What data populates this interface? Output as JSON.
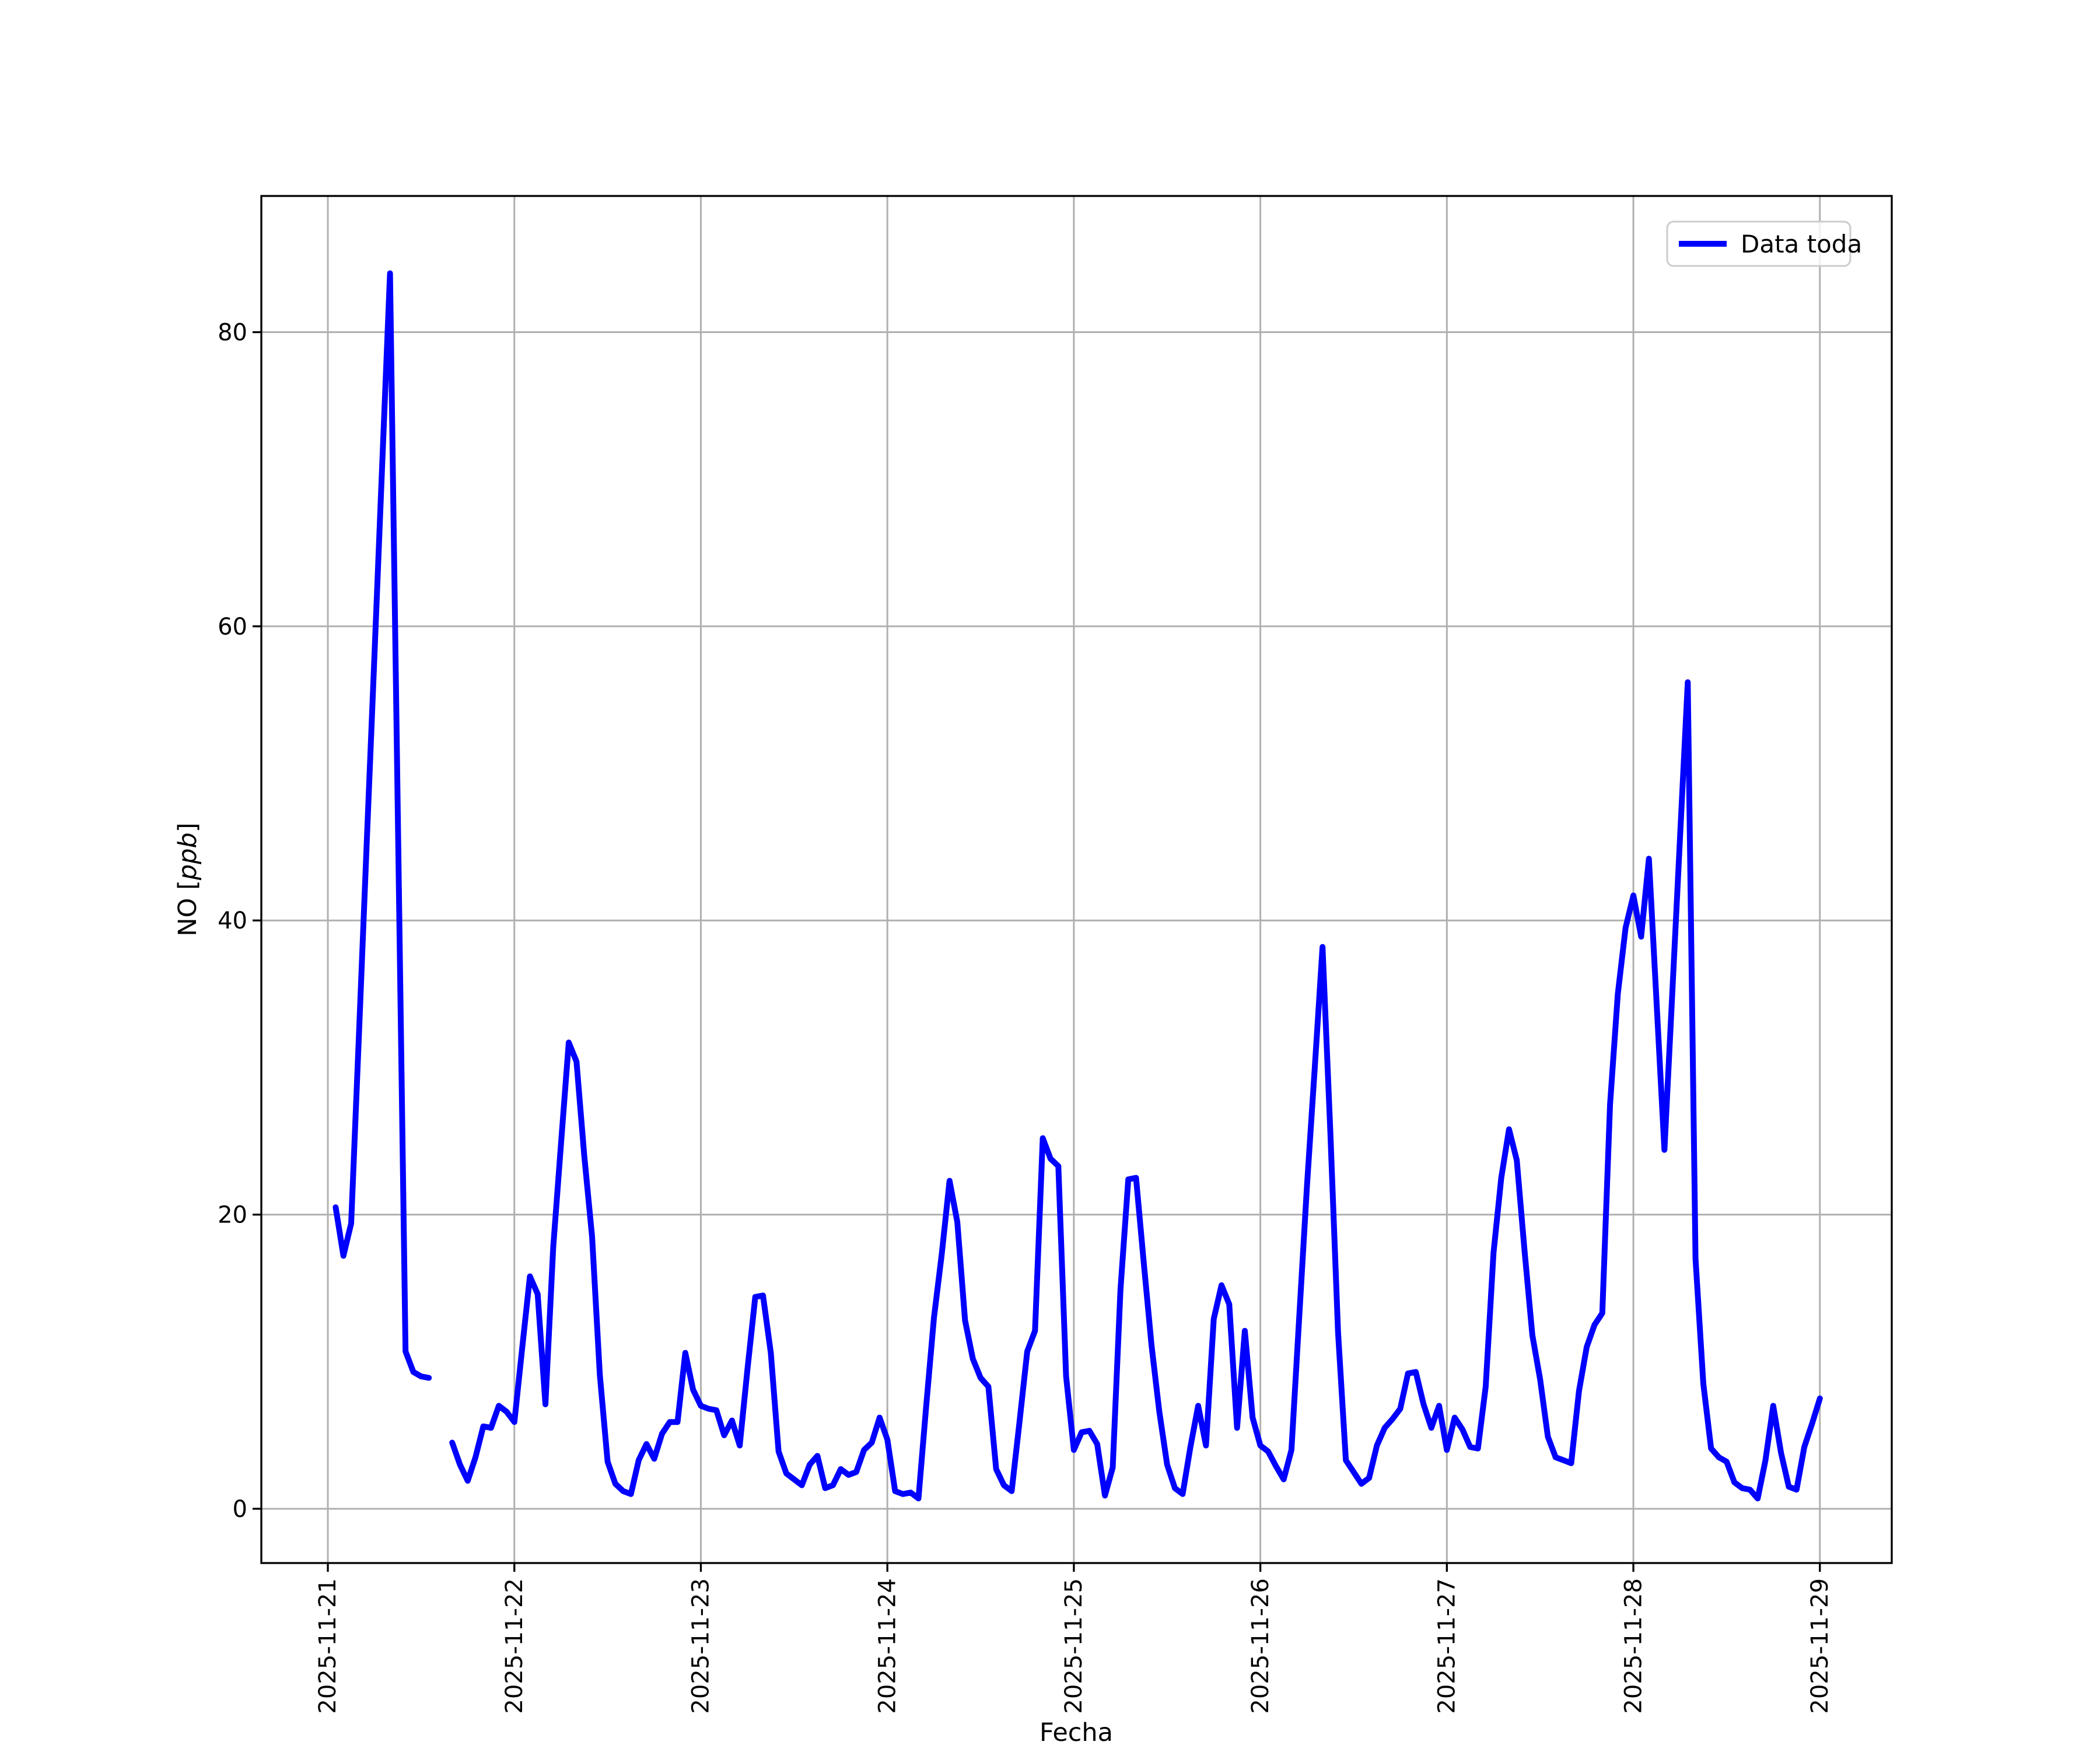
{
  "chart_data": {
    "type": "line",
    "title": "",
    "xlabel": "Fecha",
    "ylabel": "NO [ppb]",
    "ylabel_math": {
      "prefix": "NO [",
      "italic": "ppb",
      "suffix": "]"
    },
    "grid": true,
    "legend": {
      "entries": [
        "Data toda"
      ],
      "position": "upper right"
    },
    "colors": {
      "line": "#0000ff",
      "grid": "#b0b0b0",
      "spine": "#000000",
      "legend_edge": "#cccccc",
      "background": "#ffffff"
    },
    "yticks": [
      0,
      20,
      40,
      60,
      80
    ],
    "ylim": [
      -3.69,
      89.26
    ],
    "xlim_hours": [
      -8.56,
      201.25
    ],
    "x_tick_labels": [
      "2025-11-21",
      "2025-11-22",
      "2025-11-23",
      "2025-11-24",
      "2025-11-25",
      "2025-11-26",
      "2025-11-27",
      "2025-11-28",
      "2025-11-29"
    ],
    "x_tick_hours": [
      0,
      24,
      48,
      72,
      96,
      120,
      144,
      168,
      192
    ],
    "series": [
      {
        "name": "Data toda",
        "start": "2025-11-21 01:00",
        "step_hours": 1,
        "values": [
          20.5,
          17.2,
          19.4,
          32.2,
          45.2,
          58.1,
          71.1,
          84.0,
          47.4,
          10.7,
          9.3,
          9.0,
          8.9,
          null,
          null,
          4.5,
          3.0,
          1.9,
          3.5,
          5.6,
          5.5,
          7.0,
          6.6,
          5.9,
          10.9,
          15.8,
          14.6,
          7.1,
          17.8,
          24.8,
          31.7,
          30.4,
          24.0,
          18.5,
          9.1,
          3.2,
          1.7,
          1.2,
          1.0,
          3.3,
          4.4,
          3.4,
          5.1,
          5.9,
          5.9,
          10.6,
          8.1,
          7.0,
          6.8,
          6.7,
          5.0,
          6.0,
          4.3,
          9.5,
          14.4,
          14.5,
          10.6,
          3.9,
          2.4,
          2.0,
          1.6,
          3.0,
          3.6,
          1.4,
          1.6,
          2.7,
          2.3,
          2.5,
          4.0,
          4.5,
          6.2,
          4.7,
          1.2,
          1.0,
          1.1,
          0.7,
          7.0,
          13.0,
          17.3,
          22.3,
          19.5,
          12.8,
          10.2,
          8.9,
          8.3,
          2.7,
          1.6,
          1.2,
          5.9,
          10.7,
          12.1,
          25.2,
          23.8,
          23.3,
          9.0,
          4.0,
          5.2,
          5.3,
          4.4,
          0.9,
          2.8,
          14.9,
          22.4,
          22.5,
          16.7,
          11.1,
          6.6,
          3.0,
          1.4,
          1.0,
          4.2,
          7.0,
          4.3,
          12.9,
          15.2,
          13.9,
          5.5,
          12.1,
          6.2,
          4.3,
          3.9,
          2.9,
          2.0,
          4.0,
          13.0,
          22.0,
          30.0,
          38.2,
          25.7,
          12.0,
          3.3,
          2.5,
          1.7,
          2.1,
          4.3,
          5.5,
          6.1,
          6.8,
          9.2,
          9.3,
          7.1,
          5.5,
          7.0,
          4.0,
          6.2,
          5.4,
          4.2,
          4.1,
          8.3,
          17.4,
          22.5,
          25.8,
          23.7,
          17.5,
          11.8,
          8.8,
          4.9,
          3.5,
          3.3,
          3.1,
          8.0,
          11.0,
          12.5,
          13.3,
          27.5,
          35.0,
          39.5,
          41.7,
          38.9,
          44.2,
          34.3,
          24.4,
          35.0,
          45.6,
          56.2,
          17.0,
          8.5,
          4.1,
          3.5,
          3.2,
          1.8,
          1.4,
          1.3,
          0.7,
          3.3,
          7.0,
          3.8,
          1.5,
          1.3,
          4.2,
          5.8,
          7.5
        ]
      }
    ]
  }
}
